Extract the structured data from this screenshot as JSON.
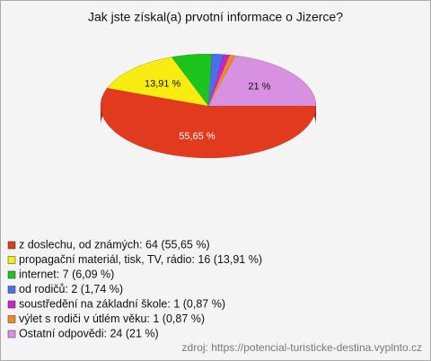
{
  "chart_data": {
    "type": "pie",
    "title": "Jak jste získal(a) prvotní informace o Jizerce?",
    "categories": [
      "z doslechu, od známých: 64 (55,65 %)",
      "propagační materiál, tisk, TV, rádio: 16 (13,91 %)",
      "internet: 7 (6,09 %)",
      "od rodičů: 2 (1,74 %)",
      "soustředění na základní škole: 1 (0,87 %)",
      "výlet s rodiči v útlém věku: 1 (0,87 %)",
      "Ostatní odpovědi: 24 (21 %)"
    ],
    "values": [
      55.65,
      13.91,
      6.09,
      1.74,
      0.87,
      0.87,
      21
    ],
    "value_labels": [
      "55,65 %",
      "13,91 %",
      null,
      null,
      null,
      null,
      "21 %"
    ],
    "colors": [
      "#e23a1e",
      "#f8ec10",
      "#1ec41e",
      "#4a6ef0",
      "#cc22cc",
      "#f08a1e",
      "#d890e0"
    ],
    "source": "zdroj: https://potencial-turisticke-destina.vyplnto.cz"
  }
}
